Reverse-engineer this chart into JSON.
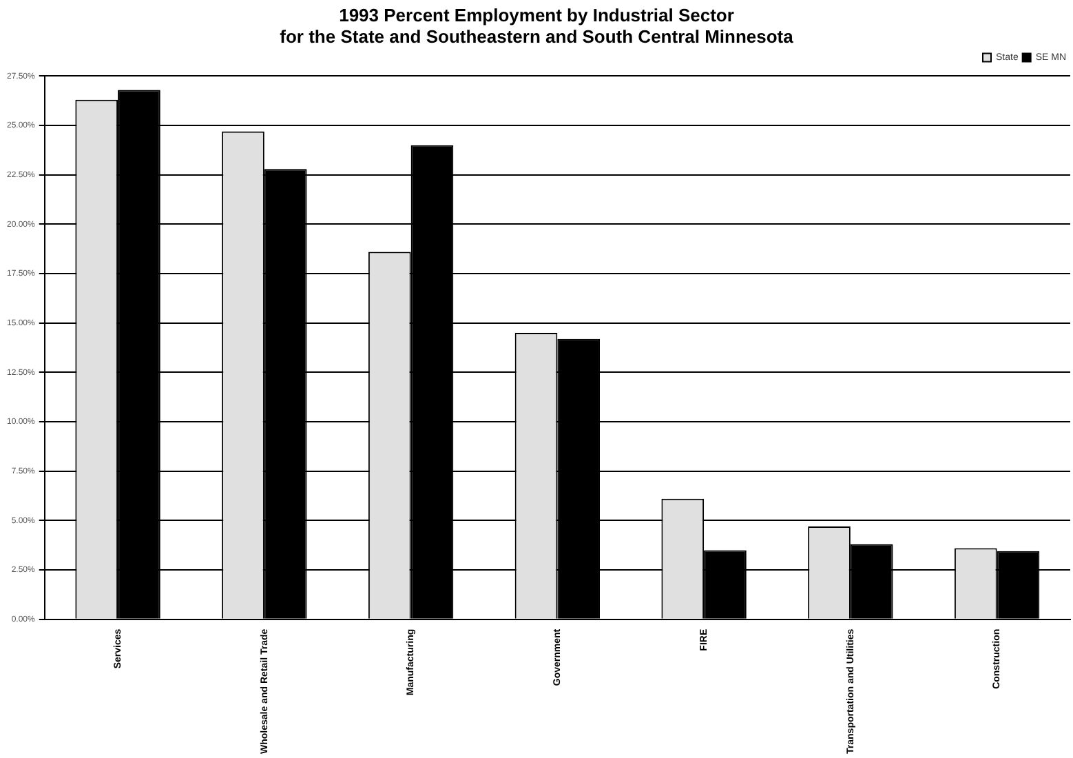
{
  "chart_data": {
    "type": "bar",
    "title": "1993 Percent Employment by Industrial Sector\nfor the State and Southeastern and South Central Minnesota",
    "categories": [
      "Services",
      "Wholesale and Retail Trade",
      "Manufacturing",
      "Government",
      "FIRE",
      "Transportation and Utilities",
      "Construction"
    ],
    "series": [
      {
        "name": "State",
        "color": "#e0e0e0",
        "values": [
          26.3,
          24.7,
          18.6,
          14.5,
          6.1,
          4.7,
          3.6
        ]
      },
      {
        "name": "SE MN",
        "color": "#000000",
        "values": [
          26.8,
          22.8,
          24.0,
          14.2,
          3.5,
          3.8,
          3.45
        ]
      }
    ],
    "ylim": [
      0,
      27.5
    ],
    "yticks": [
      {
        "value": 0,
        "label": "0.00%"
      },
      {
        "value": 2.5,
        "label": "2.50%"
      },
      {
        "value": 5,
        "label": "5.00%"
      },
      {
        "value": 7.5,
        "label": "7.50%"
      },
      {
        "value": 10,
        "label": "10.00%"
      },
      {
        "value": 12.5,
        "label": "12.50%"
      },
      {
        "value": 15,
        "label": "15.00%"
      },
      {
        "value": 17.5,
        "label": "17.50%"
      },
      {
        "value": 20,
        "label": "20.00%"
      },
      {
        "value": 22.5,
        "label": "22.50%"
      },
      {
        "value": 25,
        "label": "25.00%"
      },
      {
        "value": 27.5,
        "label": "27.50%"
      }
    ],
    "grid": "y",
    "legend": "top right"
  }
}
